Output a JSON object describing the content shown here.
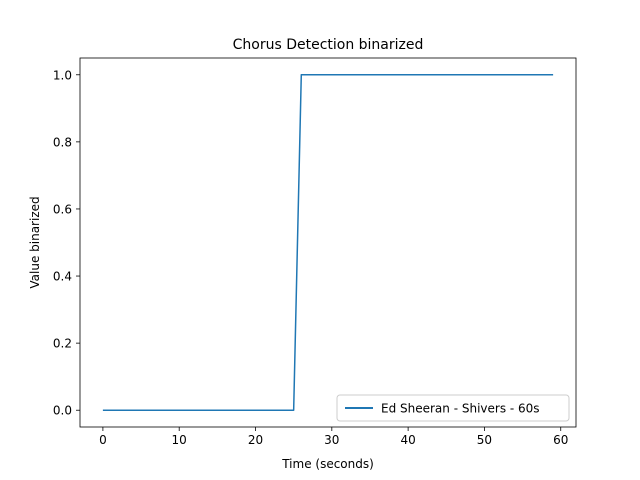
{
  "chart_data": {
    "type": "line",
    "title": "Chorus Detection binarized",
    "xlabel": "Time (seconds)",
    "ylabel": "Value binarized",
    "xlim": [
      -3,
      62
    ],
    "ylim": [
      -0.05,
      1.05
    ],
    "xticks": [
      0,
      10,
      20,
      30,
      40,
      50,
      60
    ],
    "yticks": [
      0.0,
      0.2,
      0.4,
      0.6,
      0.8,
      1.0
    ],
    "xtick_labels": [
      "0",
      "10",
      "20",
      "30",
      "40",
      "50",
      "60"
    ],
    "ytick_labels": [
      "0.0",
      "0.2",
      "0.4",
      "0.6",
      "0.8",
      "1.0"
    ],
    "grid": false,
    "legend": {
      "position": "lower-right",
      "entries": [
        "Ed Sheeran - Shivers - 60s"
      ]
    },
    "series": [
      {
        "name": "Ed Sheeran - Shivers - 60s",
        "color": "#1f77b4",
        "x": [
          0,
          25,
          26,
          59
        ],
        "y": [
          0,
          0,
          1,
          1
        ]
      }
    ]
  }
}
